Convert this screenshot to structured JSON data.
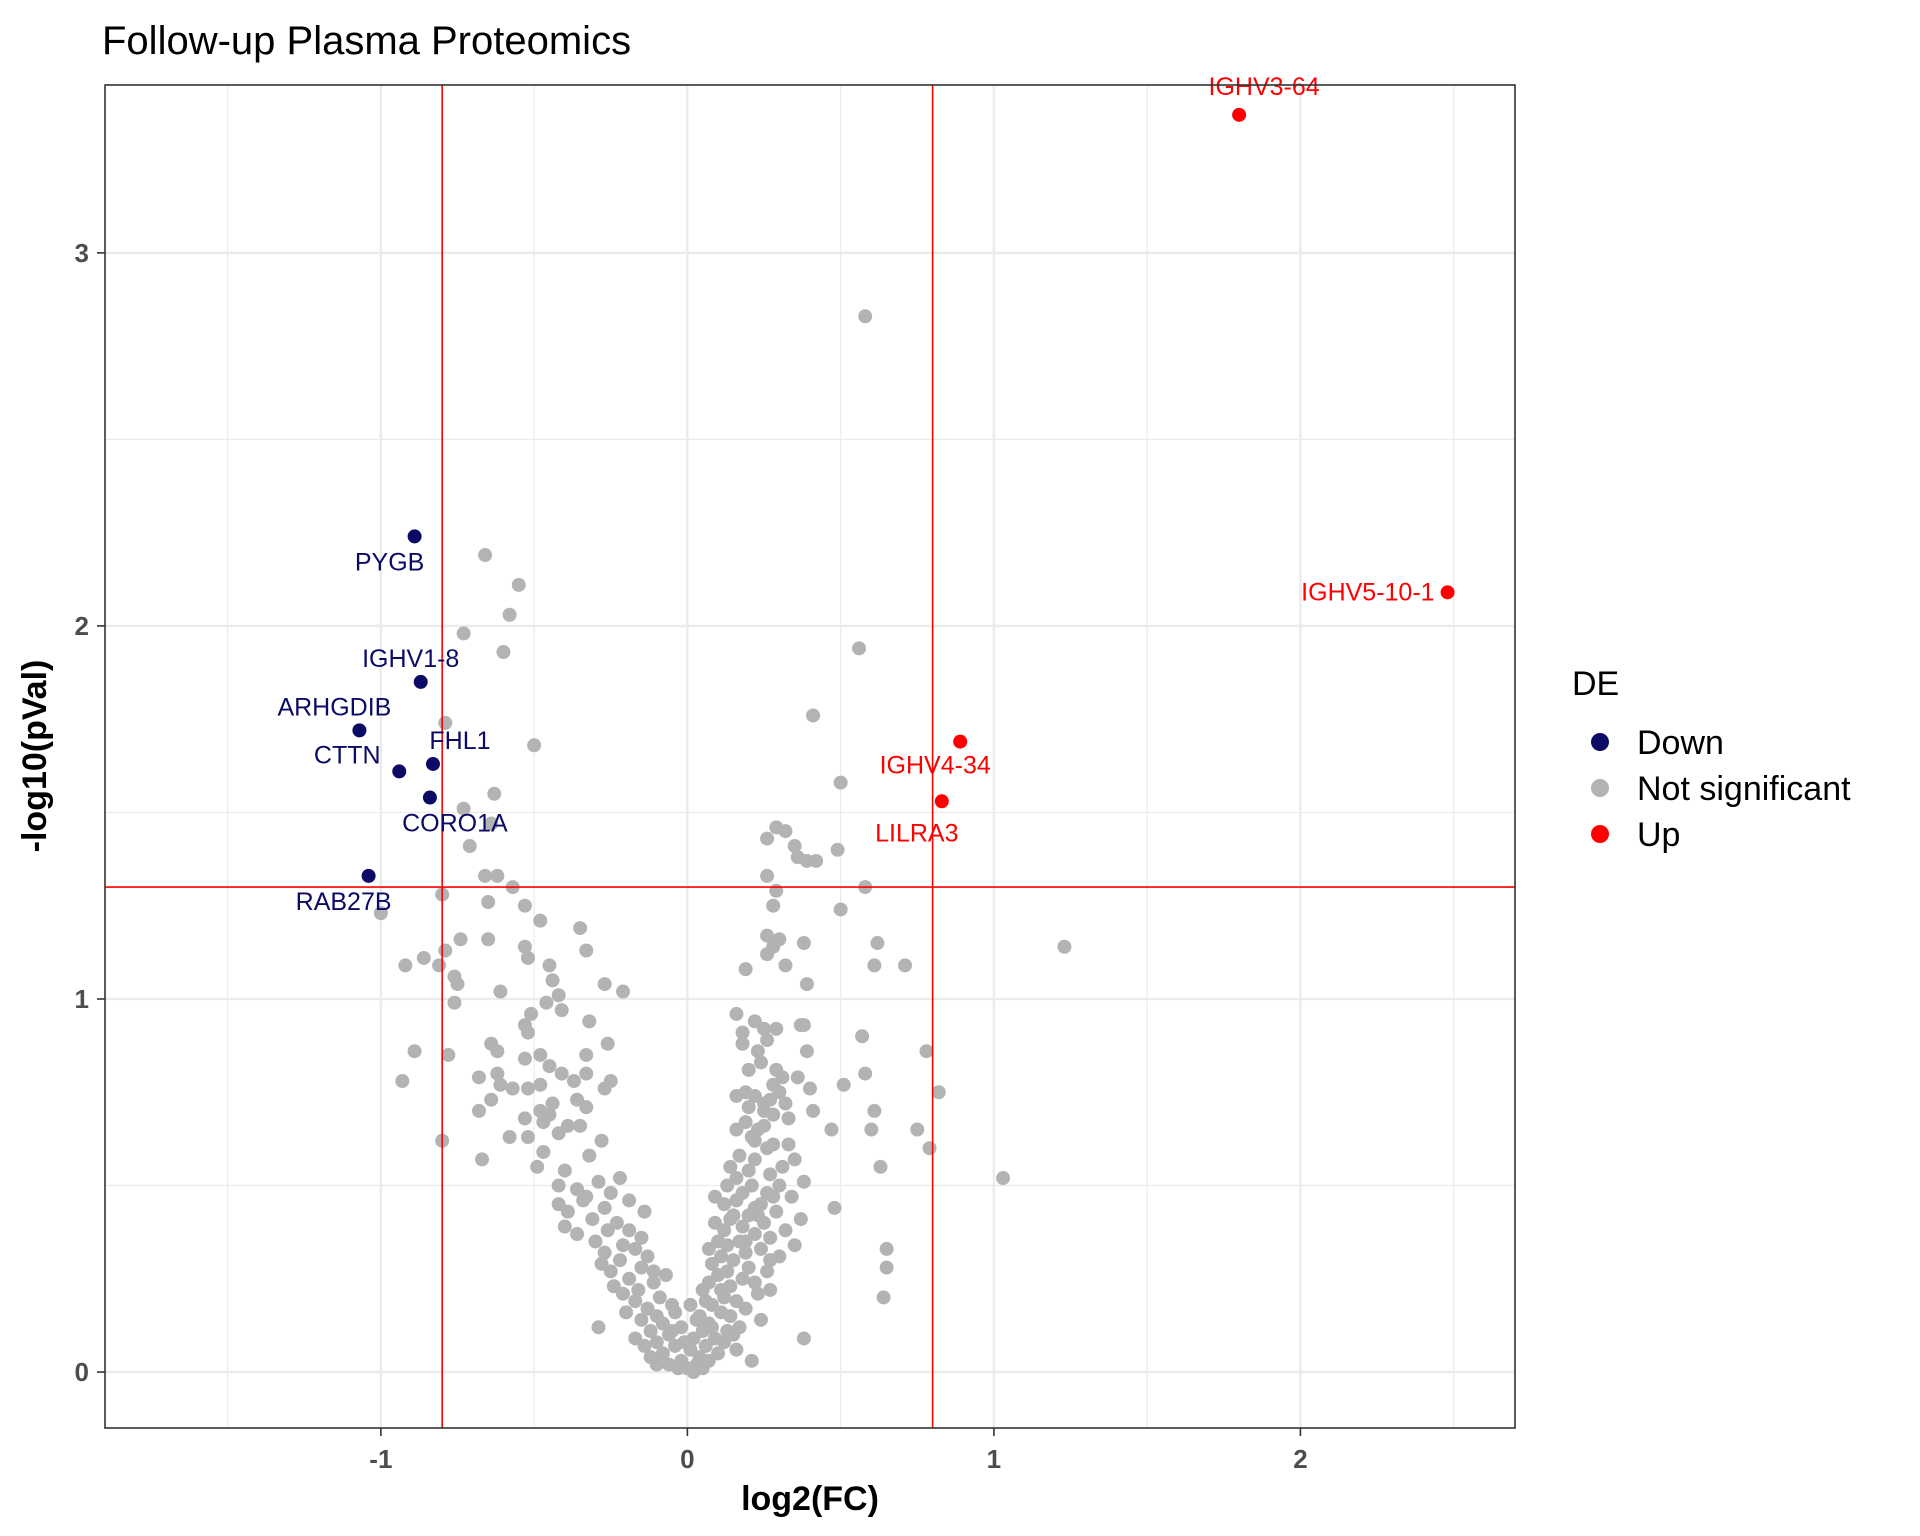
{
  "chart_data": {
    "type": "scatter",
    "title": "Follow-up Plasma Proteomics",
    "xlabel": "log2(FC)",
    "ylabel": "-log10(pVal)",
    "xlim": [
      -1.9,
      2.7
    ],
    "ylim": [
      -0.15,
      3.45
    ],
    "xticks": [
      -1,
      0,
      1,
      2
    ],
    "yticks": [
      0,
      1,
      2,
      3
    ],
    "grid": true,
    "thresholds": {
      "x": [
        -0.8,
        0.8
      ],
      "y": 1.3
    },
    "legend": {
      "title": "DE",
      "position": "right",
      "entries": [
        {
          "label": "Down",
          "color": "#0b0b66"
        },
        {
          "label": "Not significant",
          "color": "#b3b3b3"
        },
        {
          "label": "Up",
          "color": "#ff0000"
        }
      ]
    },
    "colors": {
      "Down": "#0b0b66",
      "Not significant": "#b3b3b3",
      "Up": "#ff0000",
      "threshold": "#ff0000"
    },
    "labeled_points": [
      {
        "label": "IGHV3-64",
        "x": 1.8,
        "y": 3.37,
        "group": "Up"
      },
      {
        "label": "IGHV5-10-1",
        "x": 2.48,
        "y": 2.09,
        "group": "Up"
      },
      {
        "label": "IGHV4-34",
        "x": 0.89,
        "y": 1.69,
        "group": "Up"
      },
      {
        "label": "LILRA3",
        "x": 0.83,
        "y": 1.53,
        "group": "Up"
      },
      {
        "label": "PYGB",
        "x": -0.89,
        "y": 2.24,
        "group": "Down"
      },
      {
        "label": "IGHV1-8",
        "x": -0.87,
        "y": 1.85,
        "group": "Down"
      },
      {
        "label": "ARHGDIB",
        "x": -1.07,
        "y": 1.72,
        "group": "Down"
      },
      {
        "label": "FHL1",
        "x": -0.83,
        "y": 1.63,
        "group": "Down"
      },
      {
        "label": "CTTN",
        "x": -0.94,
        "y": 1.61,
        "group": "Down"
      },
      {
        "label": "CORO1A",
        "x": -0.84,
        "y": 1.54,
        "group": "Down"
      },
      {
        "label": "RAB27B",
        "x": -1.04,
        "y": 1.33,
        "group": "Down"
      }
    ],
    "nonsig_points": [
      [
        0.58,
        2.83
      ],
      [
        -0.66,
        2.19
      ],
      [
        -0.55,
        2.11
      ],
      [
        -0.58,
        2.03
      ],
      [
        -0.73,
        1.98
      ],
      [
        -0.6,
        1.93
      ],
      [
        0.56,
        1.94
      ],
      [
        -0.79,
        1.74
      ],
      [
        0.41,
        1.76
      ],
      [
        -0.5,
        1.68
      ],
      [
        0.5,
        1.58
      ],
      [
        -0.63,
        1.55
      ],
      [
        -0.73,
        1.51
      ],
      [
        -0.64,
        1.47
      ],
      [
        0.29,
        1.46
      ],
      [
        0.32,
        1.45
      ],
      [
        0.26,
        1.43
      ],
      [
        0.35,
        1.41
      ],
      [
        -0.71,
        1.41
      ],
      [
        0.49,
        1.4
      ],
      [
        0.39,
        1.37
      ],
      [
        0.42,
        1.37
      ],
      [
        0.36,
        1.38
      ],
      [
        0.26,
        1.33
      ],
      [
        -0.66,
        1.33
      ],
      [
        -0.62,
        1.33
      ],
      [
        -0.57,
        1.3
      ],
      [
        0.58,
        1.3
      ],
      [
        0.29,
        1.29
      ],
      [
        -0.8,
        1.28
      ],
      [
        -0.65,
        1.26
      ],
      [
        0.28,
        1.25
      ],
      [
        -0.53,
        1.25
      ],
      [
        0.5,
        1.24
      ],
      [
        -1.0,
        1.23
      ],
      [
        -0.48,
        1.21
      ],
      [
        -0.35,
        1.19
      ],
      [
        0.26,
        1.17
      ],
      [
        0.3,
        1.16
      ],
      [
        0.28,
        1.14
      ],
      [
        -0.74,
        1.16
      ],
      [
        -0.65,
        1.16
      ],
      [
        0.38,
        1.15
      ],
      [
        -0.33,
        1.13
      ],
      [
        1.23,
        1.14
      ],
      [
        0.62,
        1.15
      ],
      [
        -0.53,
        1.14
      ],
      [
        0.26,
        1.12
      ],
      [
        -0.79,
        1.13
      ],
      [
        -0.86,
        1.11
      ],
      [
        -0.52,
        1.11
      ],
      [
        -0.81,
        1.09
      ],
      [
        -0.45,
        1.09
      ],
      [
        -0.92,
        1.09
      ],
      [
        0.61,
        1.09
      ],
      [
        0.71,
        1.09
      ],
      [
        0.32,
        1.09
      ],
      [
        0.19,
        1.08
      ],
      [
        -0.76,
        1.06
      ],
      [
        -0.75,
        1.04
      ],
      [
        -0.27,
        1.04
      ],
      [
        -0.44,
        1.05
      ],
      [
        0.39,
        1.04
      ],
      [
        -0.61,
        1.02
      ],
      [
        -0.42,
        1.01
      ],
      [
        -0.21,
        1.02
      ],
      [
        -0.46,
        0.99
      ],
      [
        -0.76,
        0.99
      ],
      [
        -0.41,
        0.97
      ],
      [
        0.16,
        0.96
      ],
      [
        0.37,
        0.93
      ],
      [
        -0.51,
        0.96
      ],
      [
        0.22,
        0.94
      ],
      [
        -0.32,
        0.94
      ],
      [
        0.29,
        0.92
      ],
      [
        0.25,
        0.92
      ],
      [
        0.18,
        0.91
      ],
      [
        -0.53,
        0.93
      ],
      [
        -0.52,
        0.91
      ],
      [
        0.38,
        0.93
      ],
      [
        0.57,
        0.9
      ],
      [
        0.26,
        0.89
      ],
      [
        0.18,
        0.88
      ],
      [
        -0.26,
        0.88
      ],
      [
        -0.64,
        0.88
      ],
      [
        0.23,
        0.86
      ],
      [
        -0.62,
        0.86
      ],
      [
        0.39,
        0.86
      ],
      [
        0.78,
        0.86
      ],
      [
        -0.89,
        0.86
      ],
      [
        -0.33,
        0.85
      ],
      [
        -0.48,
        0.85
      ],
      [
        -0.78,
        0.85
      ],
      [
        -0.53,
        0.84
      ],
      [
        -0.45,
        0.82
      ],
      [
        0.24,
        0.83
      ],
      [
        0.2,
        0.81
      ],
      [
        0.29,
        0.81
      ],
      [
        -0.41,
        0.8
      ],
      [
        0.58,
        0.8
      ],
      [
        -0.62,
        0.8
      ],
      [
        -0.33,
        0.8
      ],
      [
        -0.68,
        0.79
      ],
      [
        0.36,
        0.79
      ],
      [
        0.31,
        0.79
      ],
      [
        -0.37,
        0.78
      ],
      [
        -0.25,
        0.78
      ],
      [
        -0.93,
        0.78
      ],
      [
        -0.48,
        0.77
      ],
      [
        0.28,
        0.77
      ],
      [
        -0.61,
        0.77
      ],
      [
        -0.52,
        0.76
      ],
      [
        -0.57,
        0.76
      ],
      [
        -0.27,
        0.76
      ],
      [
        0.4,
        0.76
      ],
      [
        0.51,
        0.77
      ],
      [
        0.3,
        0.75
      ],
      [
        0.19,
        0.75
      ],
      [
        0.82,
        0.75
      ],
      [
        0.16,
        0.74
      ],
      [
        0.22,
        0.74
      ],
      [
        -0.64,
        0.73
      ],
      [
        -0.36,
        0.73
      ],
      [
        0.27,
        0.73
      ],
      [
        -0.44,
        0.72
      ],
      [
        0.32,
        0.72
      ],
      [
        0.2,
        0.71
      ],
      [
        -0.33,
        0.71
      ],
      [
        -0.48,
        0.7
      ],
      [
        -0.68,
        0.7
      ],
      [
        0.41,
        0.7
      ],
      [
        0.61,
        0.7
      ],
      [
        0.25,
        0.7
      ],
      [
        -0.45,
        0.69
      ],
      [
        0.28,
        0.69
      ],
      [
        -0.53,
        0.68
      ],
      [
        -0.47,
        0.67
      ],
      [
        0.19,
        0.67
      ],
      [
        -0.35,
        0.66
      ],
      [
        0.25,
        0.66
      ],
      [
        -0.39,
        0.66
      ],
      [
        0.47,
        0.65
      ],
      [
        0.6,
        0.65
      ],
      [
        0.75,
        0.65
      ],
      [
        0.23,
        0.65
      ],
      [
        0.16,
        0.65
      ],
      [
        -0.42,
        0.64
      ],
      [
        -0.52,
        0.63
      ],
      [
        -0.58,
        0.63
      ],
      [
        -0.8,
        0.62
      ],
      [
        -0.28,
        0.62
      ],
      [
        0.22,
        0.62
      ],
      [
        0.28,
        0.61
      ],
      [
        0.33,
        0.61
      ],
      [
        0.26,
        0.6
      ],
      [
        0.79,
        0.6
      ],
      [
        -0.47,
        0.59
      ],
      [
        -0.32,
        0.58
      ],
      [
        0.17,
        0.58
      ],
      [
        -0.67,
        0.57
      ],
      [
        0.22,
        0.57
      ],
      [
        0.35,
        0.57
      ],
      [
        0.63,
        0.55
      ],
      [
        -0.49,
        0.55
      ],
      [
        0.14,
        0.55
      ],
      [
        0.2,
        0.54
      ],
      [
        -0.4,
        0.54
      ],
      [
        0.27,
        0.53
      ],
      [
        1.03,
        0.52
      ],
      [
        -0.22,
        0.52
      ],
      [
        0.16,
        0.52
      ],
      [
        -0.29,
        0.51
      ],
      [
        0.38,
        0.51
      ],
      [
        0.3,
        0.5
      ],
      [
        0.21,
        0.5
      ],
      [
        -0.42,
        0.5
      ],
      [
        0.13,
        0.5
      ],
      [
        -0.36,
        0.49
      ],
      [
        0.26,
        0.48
      ],
      [
        -0.25,
        0.48
      ],
      [
        0.18,
        0.48
      ],
      [
        0.09,
        0.47
      ],
      [
        -0.33,
        0.47
      ],
      [
        0.34,
        0.47
      ],
      [
        0.16,
        0.46
      ],
      [
        -0.19,
        0.46
      ],
      [
        0.24,
        0.45
      ],
      [
        -0.42,
        0.45
      ],
      [
        0.12,
        0.45
      ],
      [
        0.22,
        0.44
      ],
      [
        0.48,
        0.44
      ],
      [
        -0.27,
        0.44
      ],
      [
        -0.14,
        0.43
      ],
      [
        0.29,
        0.43
      ],
      [
        -0.39,
        0.43
      ],
      [
        0.15,
        0.42
      ],
      [
        0.2,
        0.42
      ],
      [
        0.37,
        0.41
      ],
      [
        -0.31,
        0.41
      ],
      [
        0.14,
        0.41
      ],
      [
        0.25,
        0.4
      ],
      [
        -0.23,
        0.4
      ],
      [
        0.09,
        0.4
      ],
      [
        -0.4,
        0.39
      ],
      [
        0.18,
        0.39
      ],
      [
        0.32,
        0.38
      ],
      [
        -0.26,
        0.38
      ],
      [
        0.12,
        0.38
      ],
      [
        -0.36,
        0.37
      ],
      [
        0.22,
        0.37
      ],
      [
        0.27,
        0.36
      ],
      [
        -0.15,
        0.36
      ],
      [
        0.17,
        0.35
      ],
      [
        0.1,
        0.35
      ],
      [
        -0.3,
        0.35
      ],
      [
        0.35,
        0.34
      ],
      [
        -0.21,
        0.34
      ],
      [
        0.13,
        0.34
      ],
      [
        0.24,
        0.33
      ],
      [
        0.07,
        0.33
      ],
      [
        -0.27,
        0.32
      ],
      [
        0.65,
        0.33
      ],
      [
        0.19,
        0.32
      ],
      [
        0.3,
        0.31
      ],
      [
        -0.13,
        0.31
      ],
      [
        0.11,
        0.31
      ],
      [
        0.15,
        0.3
      ],
      [
        -0.22,
        0.3
      ],
      [
        0.27,
        0.3
      ],
      [
        -0.28,
        0.29
      ],
      [
        0.08,
        0.29
      ],
      [
        0.2,
        0.28
      ],
      [
        0.65,
        0.28
      ],
      [
        -0.15,
        0.28
      ],
      [
        0.13,
        0.27
      ],
      [
        -0.25,
        0.27
      ],
      [
        0.26,
        0.27
      ],
      [
        -0.07,
        0.26
      ],
      [
        0.1,
        0.26
      ],
      [
        -0.19,
        0.25
      ],
      [
        0.18,
        0.25
      ],
      [
        0.22,
        0.24
      ],
      [
        -0.11,
        0.24
      ],
      [
        0.07,
        0.24
      ],
      [
        -0.24,
        0.23
      ],
      [
        0.14,
        0.23
      ],
      [
        0.27,
        0.22
      ],
      [
        -0.16,
        0.22
      ],
      [
        0.05,
        0.22
      ],
      [
        0.23,
        0.21
      ],
      [
        -0.21,
        0.21
      ],
      [
        0.12,
        0.2
      ],
      [
        0.64,
        0.2
      ],
      [
        -0.09,
        0.2
      ],
      [
        0.16,
        0.19
      ],
      [
        -0.17,
        0.19
      ],
      [
        0.08,
        0.18
      ],
      [
        -0.05,
        0.18
      ],
      [
        0.19,
        0.17
      ],
      [
        -0.13,
        0.17
      ],
      [
        0.11,
        0.16
      ],
      [
        -0.2,
        0.16
      ],
      [
        0.14,
        0.15
      ],
      [
        0.04,
        0.15
      ],
      [
        -0.1,
        0.15
      ],
      [
        0.24,
        0.14
      ],
      [
        -0.15,
        0.14
      ],
      [
        0.07,
        0.13
      ],
      [
        -0.08,
        0.13
      ],
      [
        0.17,
        0.12
      ],
      [
        -0.02,
        0.12
      ],
      [
        -0.29,
        0.12
      ],
      [
        0.13,
        0.11
      ],
      [
        -0.12,
        0.11
      ],
      [
        0.05,
        0.11
      ],
      [
        0.15,
        0.1
      ],
      [
        -0.06,
        0.1
      ],
      [
        0.09,
        0.09
      ],
      [
        -0.17,
        0.09
      ],
      [
        0.38,
        0.09
      ],
      [
        0.02,
        0.09
      ],
      [
        -0.1,
        0.08
      ],
      [
        0.12,
        0.08
      ],
      [
        -0.04,
        0.07
      ],
      [
        0.06,
        0.07
      ],
      [
        -0.14,
        0.07
      ],
      [
        0.16,
        0.06
      ],
      [
        0.01,
        0.06
      ],
      [
        -0.08,
        0.05
      ],
      [
        0.1,
        0.05
      ],
      [
        -0.12,
        0.04
      ],
      [
        0.04,
        0.04
      ],
      [
        -0.02,
        0.03
      ],
      [
        0.07,
        0.03
      ],
      [
        0.21,
        0.03
      ],
      [
        -0.06,
        0.02
      ],
      [
        0.03,
        0.02
      ],
      [
        -0.1,
        0.02
      ],
      [
        0.0,
        0.01
      ],
      [
        0.05,
        0.01
      ],
      [
        -0.03,
        0.01
      ],
      [
        0.02,
        0.0
      ],
      [
        -0.08,
        0.05
      ],
      [
        0.08,
        0.12
      ],
      [
        -0.04,
        0.16
      ],
      [
        0.06,
        0.19
      ],
      [
        -0.01,
        0.08
      ],
      [
        0.03,
        0.14
      ],
      [
        -0.05,
        0.11
      ],
      [
        0.01,
        0.18
      ],
      [
        0.11,
        0.22
      ],
      [
        -0.11,
        0.27
      ],
      [
        0.19,
        0.35
      ],
      [
        -0.17,
        0.33
      ],
      [
        0.23,
        0.42
      ],
      [
        -0.19,
        0.38
      ],
      [
        0.28,
        0.47
      ],
      [
        -0.34,
        0.46
      ],
      [
        0.31,
        0.55
      ],
      [
        0.21,
        0.63
      ],
      [
        0.25,
        0.72
      ],
      [
        0.33,
        0.68
      ]
    ]
  }
}
